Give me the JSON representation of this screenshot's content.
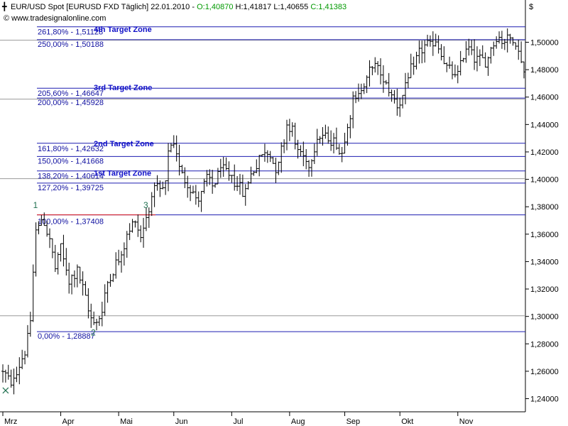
{
  "header": {
    "symbol_text": "EUR/USD Spot [EURUSD FXD  Täglich] 22.01.2010 - ",
    "open": "O:1,40870",
    "high": "H:1,41817",
    "low": "L:1,40655",
    "close": "C:1,41383",
    "website": "© www.tradesignalonline.com",
    "currency": "$"
  },
  "colors": {
    "fib_line": "#1c1cb0",
    "grey_line": "#9a9a9a",
    "red_line": "#e01818",
    "zone_text": "#1010c8",
    "wave_label": "#207050",
    "close_green": "#009900"
  },
  "chart_data": {
    "type": "ohlc",
    "y_axis": {
      "min": 1.23,
      "max": 1.53,
      "side": "right",
      "ticks": [
        {
          "value": 1.24,
          "label": "1,24000"
        },
        {
          "value": 1.26,
          "label": "1,26000"
        },
        {
          "value": 1.28,
          "label": "1,28000"
        },
        {
          "value": 1.3,
          "label": "1,30000"
        },
        {
          "value": 1.32,
          "label": "1,32000"
        },
        {
          "value": 1.34,
          "label": "1,34000"
        },
        {
          "value": 1.36,
          "label": "1,36000"
        },
        {
          "value": 1.38,
          "label": "1,38000"
        },
        {
          "value": 1.4,
          "label": "1,40000"
        },
        {
          "value": 1.42,
          "label": "1,42000"
        },
        {
          "value": 1.44,
          "label": "1,44000"
        },
        {
          "value": 1.46,
          "label": "1,46000"
        },
        {
          "value": 1.48,
          "label": "1,48000"
        },
        {
          "value": 1.5,
          "label": "1,50000"
        }
      ]
    },
    "x_axis": {
      "total_bars": 190,
      "months": [
        {
          "label": "Mrz",
          "bar": 0
        },
        {
          "label": "Apr",
          "bar": 21
        },
        {
          "label": "Mai",
          "bar": 42
        },
        {
          "label": "Jun",
          "bar": 62
        },
        {
          "label": "Jul",
          "bar": 83
        },
        {
          "label": "Aug",
          "bar": 104
        },
        {
          "label": "Sep",
          "bar": 124
        },
        {
          "label": "Okt",
          "bar": 144
        },
        {
          "label": "Nov",
          "bar": 165
        }
      ]
    },
    "fib_levels": [
      {
        "label": "261,80% - 1,51128",
        "value": 1.51128
      },
      {
        "label": "250,00% - 1,50188",
        "value": 1.50188
      },
      {
        "label": "205,60% - 1,46647",
        "value": 1.46647
      },
      {
        "label": "200,00% - 1,45928",
        "value": 1.45928
      },
      {
        "label": "161,80% - 1,42632",
        "value": 1.42632
      },
      {
        "label": "150,00% - 1,41668",
        "value": 1.41668
      },
      {
        "label": "138,20% - 1,40614",
        "value": 1.40614
      },
      {
        "label": "127,20% - 1,39725",
        "value": 1.39725
      },
      {
        "label": "100,00% - 1,37408",
        "value": 1.37408
      },
      {
        "label": "0,00% - 1,28887",
        "value": 1.28887
      }
    ],
    "grey_lines": [
      1.5015,
      1.4585,
      1.4005,
      1.3005
    ],
    "target_zones": [
      {
        "label": "4th Target Zone",
        "value": 1.5055
      },
      {
        "label": "3rd Target Zone",
        "value": 1.463
      },
      {
        "label": "2nd Target Zone",
        "value": 1.422
      },
      {
        "label": "1st Target Zone",
        "value": 1.4005
      }
    ],
    "wave_labels": [
      {
        "label": "1",
        "bar": 12,
        "value": 1.378
      },
      {
        "label": "2",
        "bar": 33,
        "value": 1.285
      },
      {
        "label": "3",
        "bar": 52,
        "value": 1.378
      }
    ],
    "start_marker": {
      "bar": 1,
      "value": 1.246
    },
    "anchors": [
      [
        0,
        1.26
      ],
      [
        3,
        1.25
      ],
      [
        8,
        1.275
      ],
      [
        10,
        1.295
      ],
      [
        11,
        1.33
      ],
      [
        12,
        1.365
      ],
      [
        15,
        1.37
      ],
      [
        17,
        1.355
      ],
      [
        19,
        1.335
      ],
      [
        21,
        1.35
      ],
      [
        24,
        1.325
      ],
      [
        27,
        1.335
      ],
      [
        29,
        1.32
      ],
      [
        32,
        1.298
      ],
      [
        34,
        1.295
      ],
      [
        36,
        1.305
      ],
      [
        38,
        1.325
      ],
      [
        40,
        1.335
      ],
      [
        43,
        1.345
      ],
      [
        45,
        1.36
      ],
      [
        48,
        1.37
      ],
      [
        50,
        1.358
      ],
      [
        52,
        1.372
      ],
      [
        55,
        1.395
      ],
      [
        57,
        1.39
      ],
      [
        59,
        1.395
      ],
      [
        60,
        1.42
      ],
      [
        62,
        1.425
      ],
      [
        64,
        1.41
      ],
      [
        66,
        1.4
      ],
      [
        68,
        1.395
      ],
      [
        70,
        1.385
      ],
      [
        72,
        1.39
      ],
      [
        74,
        1.4
      ],
      [
        76,
        1.395
      ],
      [
        79,
        1.408
      ],
      [
        82,
        1.402
      ],
      [
        85,
        1.398
      ],
      [
        87,
        1.39
      ],
      [
        89,
        1.398
      ],
      [
        91,
        1.408
      ],
      [
        93,
        1.415
      ],
      [
        95,
        1.42
      ],
      [
        97,
        1.42
      ],
      [
        99,
        1.405
      ],
      [
        101,
        1.42
      ],
      [
        103,
        1.44
      ],
      [
        105,
        1.435
      ],
      [
        107,
        1.42
      ],
      [
        109,
        1.415
      ],
      [
        111,
        1.41
      ],
      [
        113,
        1.425
      ],
      [
        115,
        1.432
      ],
      [
        117,
        1.43
      ],
      [
        119,
        1.428
      ],
      [
        121,
        1.425
      ],
      [
        123,
        1.42
      ],
      [
        125,
        1.44
      ],
      [
        127,
        1.458
      ],
      [
        129,
        1.462
      ],
      [
        131,
        1.47
      ],
      [
        133,
        1.478
      ],
      [
        135,
        1.485
      ],
      [
        137,
        1.475
      ],
      [
        139,
        1.47
      ],
      [
        141,
        1.462
      ],
      [
        143,
        1.455
      ],
      [
        145,
        1.46
      ],
      [
        147,
        1.475
      ],
      [
        149,
        1.482
      ],
      [
        151,
        1.492
      ],
      [
        153,
        1.498
      ],
      [
        155,
        1.497
      ],
      [
        157,
        1.5
      ],
      [
        159,
        1.492
      ],
      [
        161,
        1.48
      ],
      [
        163,
        1.478
      ],
      [
        165,
        1.475
      ],
      [
        167,
        1.492
      ],
      [
        169,
        1.497
      ],
      [
        171,
        1.49
      ],
      [
        173,
        1.487
      ],
      [
        175,
        1.485
      ],
      [
        177,
        1.495
      ],
      [
        179,
        1.505
      ],
      [
        181,
        1.5
      ],
      [
        183,
        1.505
      ],
      [
        185,
        1.5
      ],
      [
        187,
        1.495
      ],
      [
        189,
        1.478
      ]
    ]
  }
}
